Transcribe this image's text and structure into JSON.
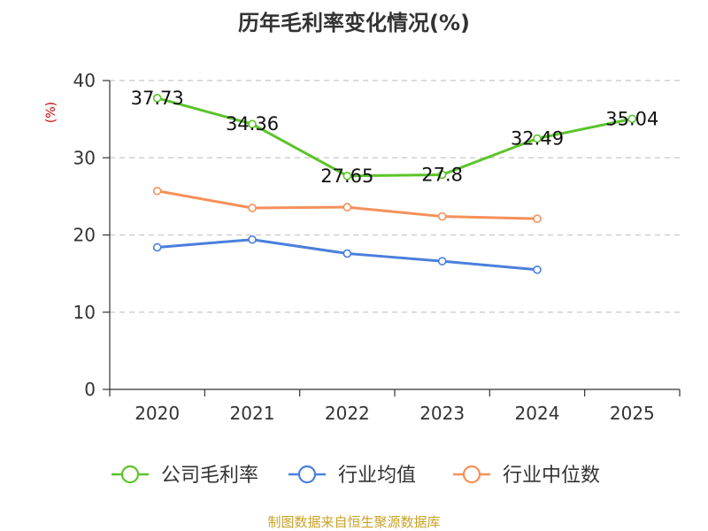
{
  "chart_data": {
    "type": "line",
    "title": "历年毛利率变化情况(%)",
    "ylabel": "(%)",
    "xlabel": "",
    "ylim": [
      0,
      40
    ],
    "yticks": [
      0,
      10,
      20,
      30,
      40
    ],
    "categories": [
      "2020",
      "2021",
      "2022",
      "2023",
      "2024",
      "2025"
    ],
    "grid": true,
    "legend_position": "bottom",
    "series": [
      {
        "name": "公司毛利率",
        "color": "#5bc42a",
        "values": [
          37.73,
          34.36,
          27.65,
          27.8,
          32.49,
          35.04
        ],
        "labels": [
          "37.73",
          "34.36",
          "27.65",
          "27.8",
          "32.49",
          "35.04"
        ]
      },
      {
        "name": "行业均值",
        "color": "#4a7fdc",
        "values": [
          18.4,
          19.4,
          17.6,
          16.6,
          15.5,
          null
        ]
      },
      {
        "name": "行业中位数",
        "color": "#f5905a",
        "values": [
          25.7,
          23.5,
          23.6,
          22.4,
          22.1,
          null
        ]
      }
    ]
  },
  "source_text": "制图数据来自恒生聚源数据库"
}
